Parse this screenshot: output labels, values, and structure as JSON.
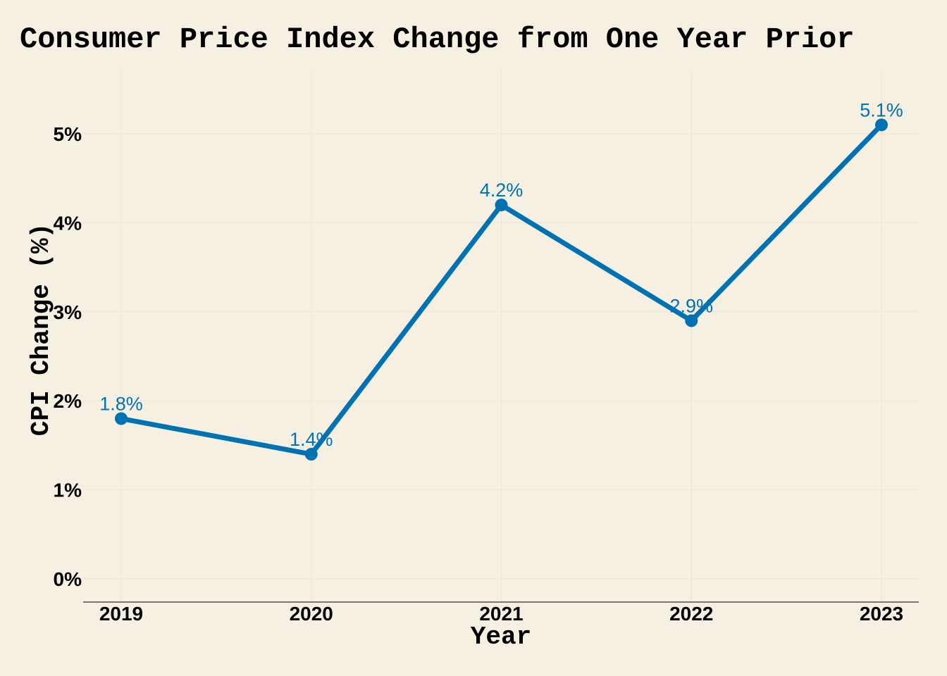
{
  "chart_data": {
    "type": "line",
    "title": "Consumer Price Index Change from One Year Prior",
    "xlabel": "Year",
    "ylabel": "CPI Change (%)",
    "x": [
      "2019",
      "2020",
      "2021",
      "2022",
      "2023"
    ],
    "series": [
      {
        "values": [
          1.8,
          1.4,
          4.2,
          2.9,
          5.1
        ],
        "labels": [
          "1.8%",
          "1.4%",
          "4.2%",
          "2.9%",
          "5.1%"
        ],
        "color": "#0072b2"
      }
    ],
    "yticks": [
      0,
      1,
      2,
      3,
      4,
      5
    ],
    "ytick_labels": [
      "0%",
      "1%",
      "2%",
      "3%",
      "4%",
      "5%"
    ],
    "ylim": [
      -0.25,
      5.25
    ],
    "grid": true,
    "legend": "none",
    "background": "#f6f0e3"
  }
}
